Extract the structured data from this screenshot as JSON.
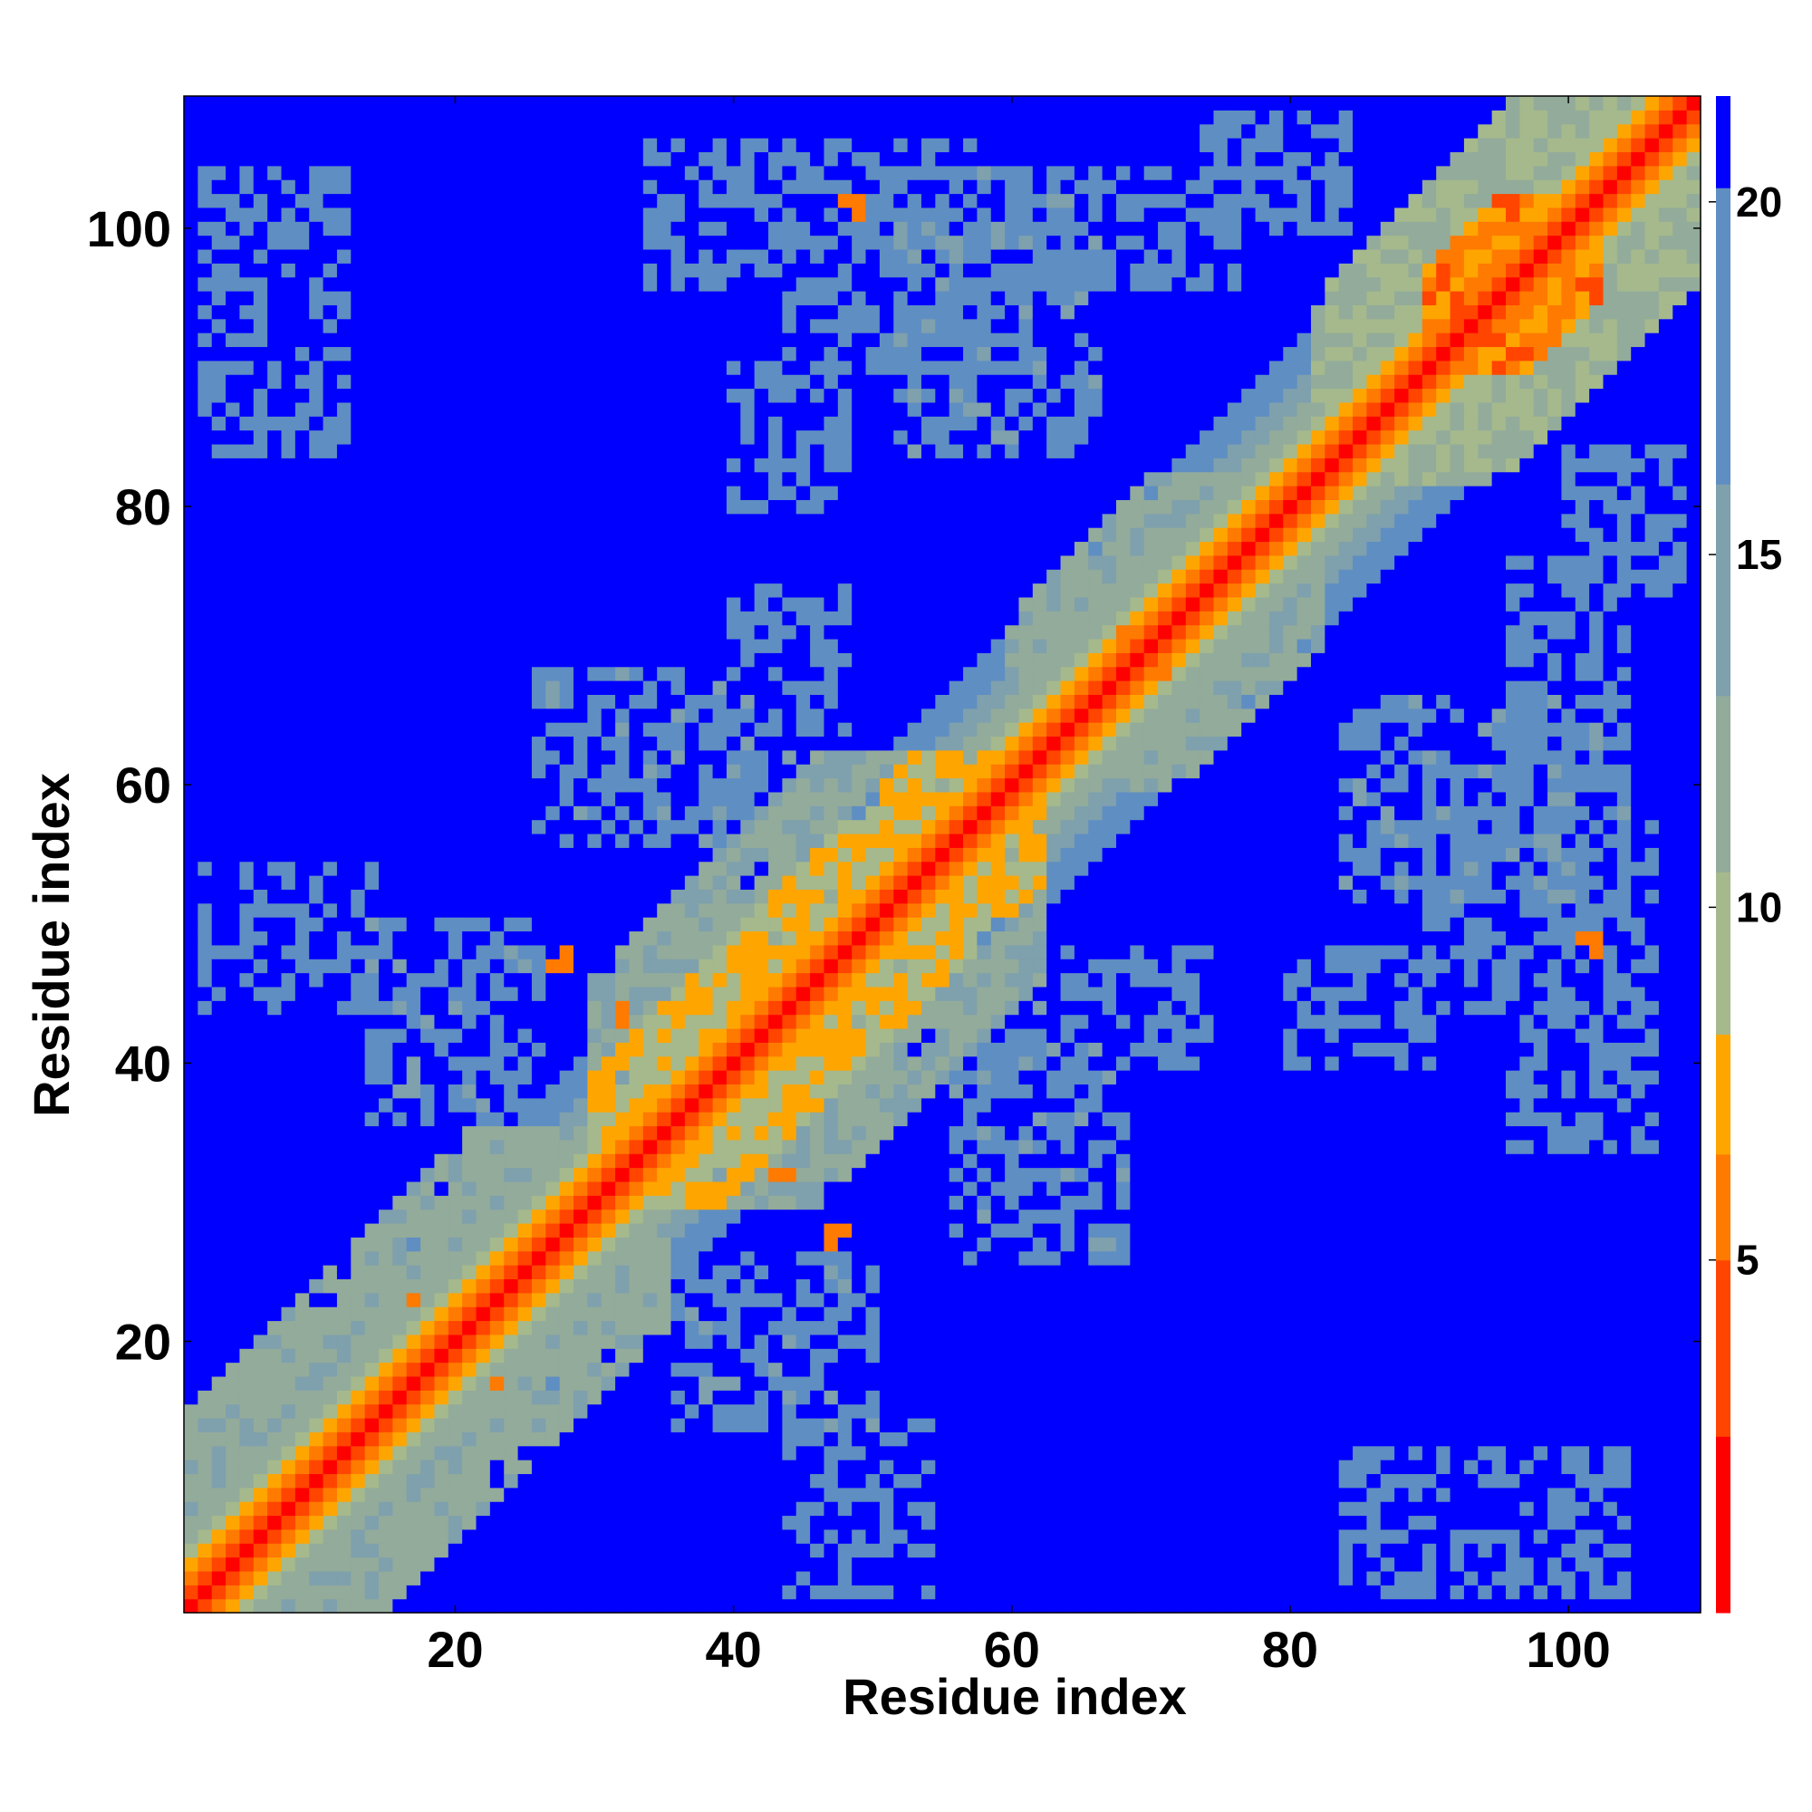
{
  "chart_data": {
    "type": "heatmap",
    "title": "",
    "xlabel": "Residue index",
    "ylabel": "Residue index",
    "n_residues": 110,
    "xlim": [
      0.5,
      109.5
    ],
    "ylim": [
      0.5,
      109.5
    ],
    "x_ticks": [
      20,
      40,
      60,
      80,
      100
    ],
    "y_ticks": [
      20,
      40,
      60,
      80,
      100
    ],
    "x_tick_labels": [
      "20",
      "40",
      "60",
      "80",
      "100"
    ],
    "y_tick_labels": [
      "20",
      "40",
      "60",
      "80",
      "100"
    ],
    "value_range": [
      0,
      21.5
    ],
    "colorbar": {
      "ticks": [
        5,
        10,
        15,
        20
      ],
      "tick_labels": [
        "5",
        "10",
        "15",
        "20"
      ],
      "colors": [
        "#ff0000",
        "#ff4500",
        "#ff7a00",
        "#ffa500",
        "#a5b98c",
        "#93ab9a",
        "#7fa0ad",
        "#5f8ec2",
        "#0000ff"
      ],
      "bounds": [
        0,
        2.5,
        5,
        6.5,
        8.2,
        10.5,
        13,
        16,
        20.2,
        21.5
      ]
    },
    "background_value": 21.5,
    "background_color": "#0000ff",
    "grid": false,
    "legend": "none",
    "pattern": "symmetric residue-residue distance map; minimum values on the main diagonal rising with sequence separation",
    "diagonal_band": [
      {
        "separation": 0,
        "value": 1.0
      },
      {
        "separation": 1,
        "value": 2.5
      },
      {
        "separation": 2,
        "value": 5.0
      },
      {
        "separation": 3,
        "value": 7.0
      },
      {
        "separation": 4,
        "value": 9.0
      },
      {
        "separation": 5,
        "value": 10.5
      },
      {
        "separation": 6,
        "value": 12.0
      },
      {
        "separation": 7,
        "value": 13.5
      },
      {
        "separation": 8,
        "value": 15.0
      },
      {
        "separation": 9,
        "value": 16.5
      },
      {
        "separation": 10,
        "value": 18.0
      },
      {
        "separation": 11,
        "value": 19.5
      }
    ],
    "contact_regions": [
      {
        "i_range": [
          1,
          35
        ],
        "j_range": [
          1,
          35
        ],
        "max_separation": 14,
        "value": 12
      },
      {
        "i_range": [
          30,
          62
        ],
        "j_range": [
          30,
          62
        ],
        "max_separation": 9,
        "value": 8
      },
      {
        "i_range": [
          30,
          62
        ],
        "j_range": [
          30,
          62
        ],
        "max_separation": 16,
        "value": 13
      },
      {
        "i_range": [
          60,
          82
        ],
        "j_range": [
          60,
          82
        ],
        "max_separation": 12,
        "value": 12
      },
      {
        "i_range": [
          82,
          109
        ],
        "j_range": [
          82,
          109
        ],
        "max_separation": 13,
        "value": 11
      },
      {
        "i_range": [
          90,
          102
        ],
        "j_range": [
          90,
          102
        ],
        "max_separation": 7,
        "value": 6
      },
      {
        "i_range": [
          14,
          26
        ],
        "j_range": [
          36,
          50
        ],
        "value": 17
      },
      {
        "i_range": [
          26,
          44
        ],
        "j_range": [
          56,
          68
        ],
        "value": 17
      },
      {
        "i_range": [
          40,
          48
        ],
        "j_range": [
          64,
          74
        ],
        "value": 18
      },
      {
        "i_range": [
          2,
          14
        ],
        "j_range": [
          44,
          54
        ],
        "value": 19
      },
      {
        "i_range": [
          40,
          48
        ],
        "j_range": [
          80,
          90
        ],
        "value": 19
      },
      {
        "i_range": [
          44,
          58
        ],
        "j_range": [
          90,
          106
        ],
        "value": 19
      },
      {
        "i_range": [
          60,
          76
        ],
        "j_range": [
          96,
          104
        ],
        "value": 19
      },
      {
        "i_range": [
          84,
          104
        ],
        "j_range": [
          52,
          66
        ],
        "value": 17
      },
      {
        "i_range": [
          96,
          106
        ],
        "j_range": [
          34,
          44
        ],
        "value": 18
      },
      {
        "i_range": [
          84,
          104
        ],
        "j_range": [
          2,
          12
        ],
        "value": 19
      },
      {
        "i_range": [
          100,
          108
        ],
        "j_range": [
          74,
          84
        ],
        "value": 18
      }
    ],
    "point_contacts": [
      {
        "i": 28,
        "j": 47,
        "value": 6
      },
      {
        "i": 28,
        "j": 48,
        "value": 6
      },
      {
        "i": 32,
        "j": 43,
        "value": 6
      },
      {
        "i": 44,
        "j": 32,
        "value": 6
      },
      {
        "i": 47,
        "j": 27,
        "value": 6
      },
      {
        "i": 48,
        "j": 28,
        "value": 6
      },
      {
        "i": 48,
        "j": 102,
        "value": 6
      },
      {
        "i": 102,
        "j": 49,
        "value": 6
      },
      {
        "i": 101,
        "j": 49,
        "value": 6
      },
      {
        "i": 68,
        "j": 71,
        "value": 6
      },
      {
        "i": 71,
        "j": 68,
        "value": 6
      },
      {
        "i": 23,
        "j": 17,
        "value": 6
      },
      {
        "i": 17,
        "j": 23,
        "value": 6
      },
      {
        "i": 12,
        "j": 14,
        "value": 6
      },
      {
        "i": 14,
        "j": 12,
        "value": 6
      },
      {
        "i": 86,
        "j": 88,
        "value": 6
      },
      {
        "i": 88,
        "j": 86,
        "value": 6
      }
    ]
  }
}
